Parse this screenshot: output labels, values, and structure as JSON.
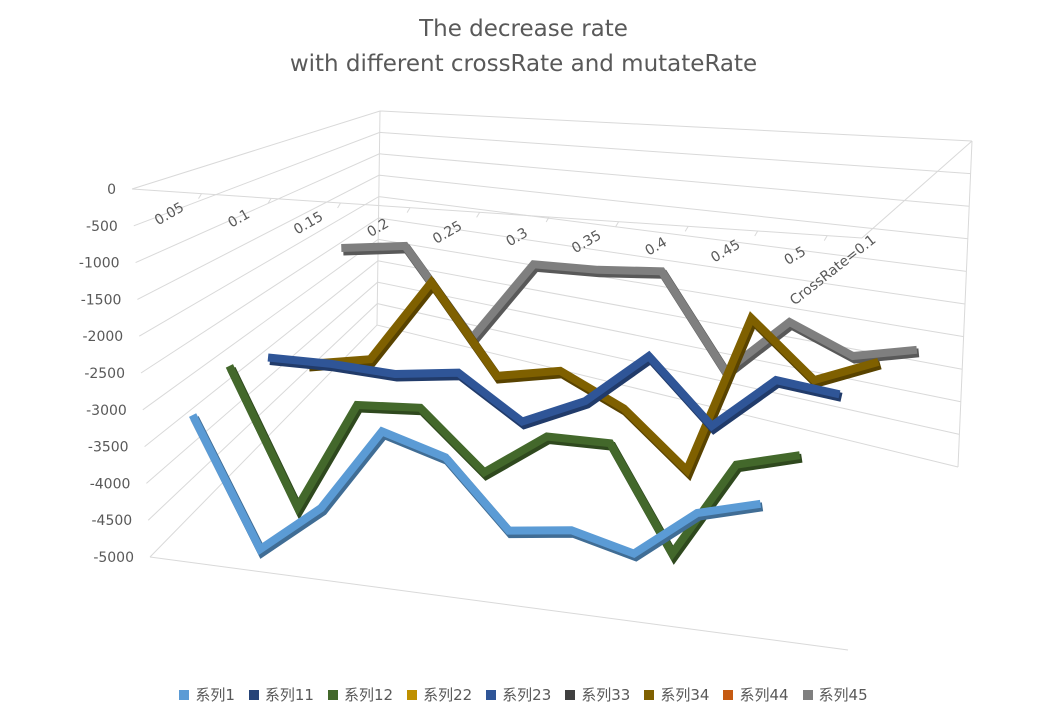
{
  "chart_data": {
    "type": "line",
    "style": "3d-line",
    "title_lines": [
      "The decrease rate",
      "with different crossRate and mutateRate"
    ],
    "x_categories": [
      "0.05",
      "0.1",
      "0.15",
      "0.2",
      "0.25",
      "0.3",
      "0.35",
      "0.4",
      "0.45",
      "0.5"
    ],
    "depth_label": "CrossRate=0.1",
    "y_ticks": [
      "0",
      "-500",
      "-1000",
      "-1500",
      "-2000",
      "-2500",
      "-3000",
      "-3500",
      "-4000",
      "-4500",
      "-5000"
    ],
    "ylim": [
      -5000,
      0
    ],
    "grid": true,
    "legend_position": "bottom",
    "series": [
      {
        "name": "系列1",
        "color": "#5B9BD5",
        "values": [
          -3000,
          -4700,
          -4050,
          -2950,
          -3200,
          -4050,
          -3950,
          -4150,
          -3550,
          -3350
        ]
      },
      {
        "name": "系列11",
        "color": "#264478",
        "values": [
          null,
          null,
          null,
          null,
          null,
          null,
          null,
          null,
          null,
          null
        ]
      },
      {
        "name": "系列12",
        "color": "#43682B",
        "values": [
          -2500,
          -4300,
          -2850,
          -2800,
          -3550,
          -3000,
          -3000,
          -4300,
          -3100,
          -2900
        ]
      },
      {
        "name": "系列22",
        "color": "#BF9000",
        "values": [
          null,
          null,
          null,
          null,
          null,
          null,
          null,
          null,
          null,
          null
        ]
      },
      {
        "name": "系列23",
        "color": "#2F5597",
        "values": [
          -2550,
          -2550,
          -2600,
          -2500,
          -3050,
          -2700,
          -2050,
          -2850,
          -2200,
          -2300
        ]
      },
      {
        "name": "系列33",
        "color": "#404040",
        "values": [
          null,
          null,
          null,
          null,
          null,
          null,
          null,
          null,
          null,
          null
        ]
      },
      {
        "name": "系列34",
        "color": "#7F6000",
        "values": [
          -2800,
          -2650,
          -1550,
          -2700,
          -2550,
          -2950,
          -3650,
          -1650,
          -2350,
          -2050
        ]
      },
      {
        "name": "系列44",
        "color": "#C55A11",
        "values": [
          null,
          null,
          null,
          null,
          null,
          null,
          null,
          null,
          null,
          null
        ]
      },
      {
        "name": "系列45",
        "color": "#7F7F7F",
        "values": [
          -1400,
          -1300,
          -2450,
          -1400,
          -1400,
          -1350,
          -2550,
          -1850,
          -2200,
          -2050
        ]
      }
    ]
  }
}
